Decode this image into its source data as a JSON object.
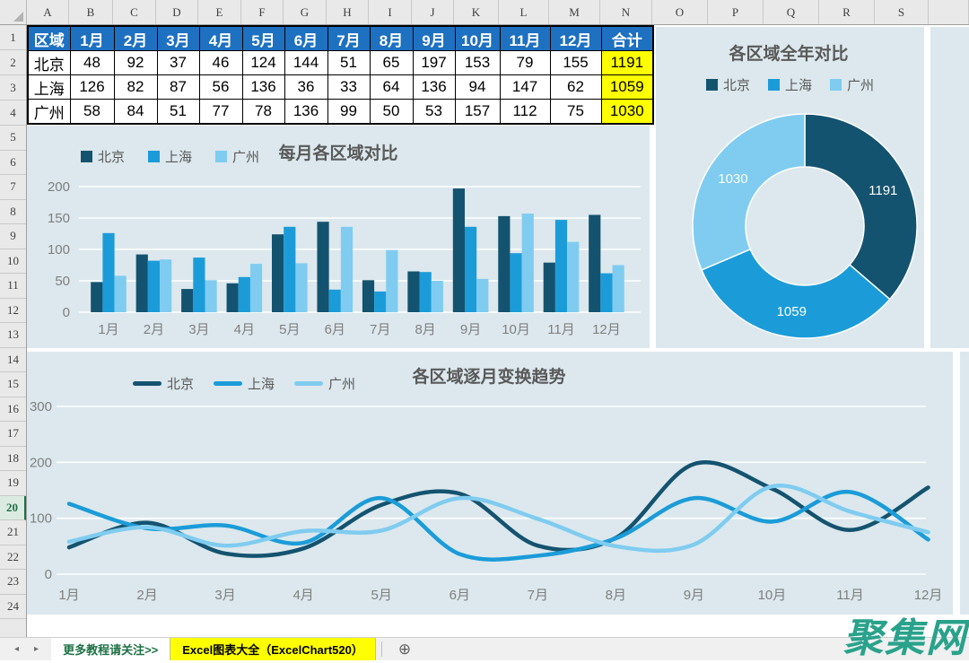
{
  "colors": {
    "beijing": "#14536f",
    "shanghai": "#1b9cd9",
    "guangzhou": "#7fccf0",
    "table_header_bg": "#1e70c1",
    "total_col_bg": "#ffff00",
    "chart_bg": "#dce8ed",
    "title_gray": "#595959",
    "axis_gray": "#7f7f7f",
    "active_tab_bg": "#ffff00",
    "sheet_tab_green": "#1e7145",
    "watermark_teal": "#2aa28b"
  },
  "spreadsheet": {
    "column_headers": [
      "A",
      "B",
      "C",
      "D",
      "E",
      "F",
      "G",
      "H",
      "I",
      "J",
      "K",
      "L",
      "M",
      "N",
      "O",
      "P",
      "Q",
      "R",
      "S"
    ],
    "row_numbers": [
      "1",
      "2",
      "3",
      "4",
      "5",
      "6",
      "7",
      "8",
      "9",
      "10",
      "11",
      "12",
      "13",
      "14",
      "15",
      "16",
      "17",
      "18",
      "19",
      "20",
      "21",
      "22",
      "23",
      "24"
    ],
    "selected_row": "20"
  },
  "table": {
    "header": [
      "区域",
      "1月",
      "2月",
      "3月",
      "4月",
      "5月",
      "6月",
      "7月",
      "8月",
      "9月",
      "10月",
      "11月",
      "12月",
      "合计"
    ],
    "rows": [
      {
        "region": "北京",
        "values": [
          48,
          92,
          37,
          46,
          124,
          144,
          51,
          65,
          197,
          153,
          79,
          155
        ],
        "total": 1191
      },
      {
        "region": "上海",
        "values": [
          126,
          82,
          87,
          56,
          136,
          36,
          33,
          64,
          136,
          94,
          147,
          62
        ],
        "total": 1059
      },
      {
        "region": "广州",
        "values": [
          58,
          84,
          51,
          77,
          78,
          136,
          99,
          50,
          53,
          157,
          112,
          75
        ],
        "total": 1030
      }
    ]
  },
  "chart_data": [
    {
      "type": "bar",
      "title": "每月各区域对比",
      "categories": [
        "1月",
        "2月",
        "3月",
        "4月",
        "5月",
        "6月",
        "7月",
        "8月",
        "9月",
        "10月",
        "11月",
        "12月"
      ],
      "series": [
        {
          "name": "北京",
          "color": "#14536f",
          "values": [
            48,
            92,
            37,
            46,
            124,
            144,
            51,
            65,
            197,
            153,
            79,
            155
          ]
        },
        {
          "name": "上海",
          "color": "#1b9cd9",
          "values": [
            126,
            82,
            87,
            56,
            136,
            36,
            33,
            64,
            136,
            94,
            147,
            62
          ]
        },
        {
          "name": "广州",
          "color": "#7fccf0",
          "values": [
            58,
            84,
            51,
            77,
            78,
            136,
            99,
            50,
            53,
            157,
            112,
            75
          ]
        }
      ],
      "ylim": [
        0,
        200
      ],
      "yticks": [
        0,
        50,
        100,
        150,
        200
      ],
      "grid": true,
      "legend_position": "top-left"
    },
    {
      "type": "pie",
      "subtype": "donut",
      "title": "各区域全年对比",
      "labels": [
        "北京",
        "上海",
        "广州"
      ],
      "values": [
        1191,
        1059,
        1030
      ],
      "slice_labels": [
        "1191",
        "1059",
        "1030"
      ],
      "slice_colors": [
        "#14536f",
        "#1b9cd9",
        "#7fccf0"
      ],
      "legend_position": "top"
    },
    {
      "type": "line",
      "title": "各区域逐月变换趋势",
      "smooth": true,
      "categories": [
        "1月",
        "2月",
        "3月",
        "4月",
        "5月",
        "6月",
        "7月",
        "8月",
        "9月",
        "10月",
        "11月",
        "12月"
      ],
      "series": [
        {
          "name": "北京",
          "color": "#14536f",
          "values": [
            48,
            92,
            37,
            46,
            124,
            144,
            51,
            65,
            197,
            153,
            79,
            155
          ]
        },
        {
          "name": "上海",
          "color": "#1b9cd9",
          "values": [
            126,
            82,
            87,
            56,
            136,
            36,
            33,
            64,
            136,
            94,
            147,
            62
          ]
        },
        {
          "name": "广州",
          "color": "#7fccf0",
          "values": [
            58,
            84,
            51,
            77,
            78,
            136,
            99,
            50,
            53,
            157,
            112,
            75
          ]
        }
      ],
      "ylim": [
        0,
        300
      ],
      "yticks": [
        0,
        100,
        200,
        300
      ],
      "grid": true,
      "legend_position": "top"
    }
  ],
  "tabs": {
    "sheet1": "更多教程请关注>>",
    "sheet2": "Excel图表大全（ExcelChart520）"
  },
  "icons": {
    "tab_nav_left": "◂",
    "tab_nav_right": "▸",
    "add_sheet": "⊕"
  },
  "watermark": "聚集网"
}
